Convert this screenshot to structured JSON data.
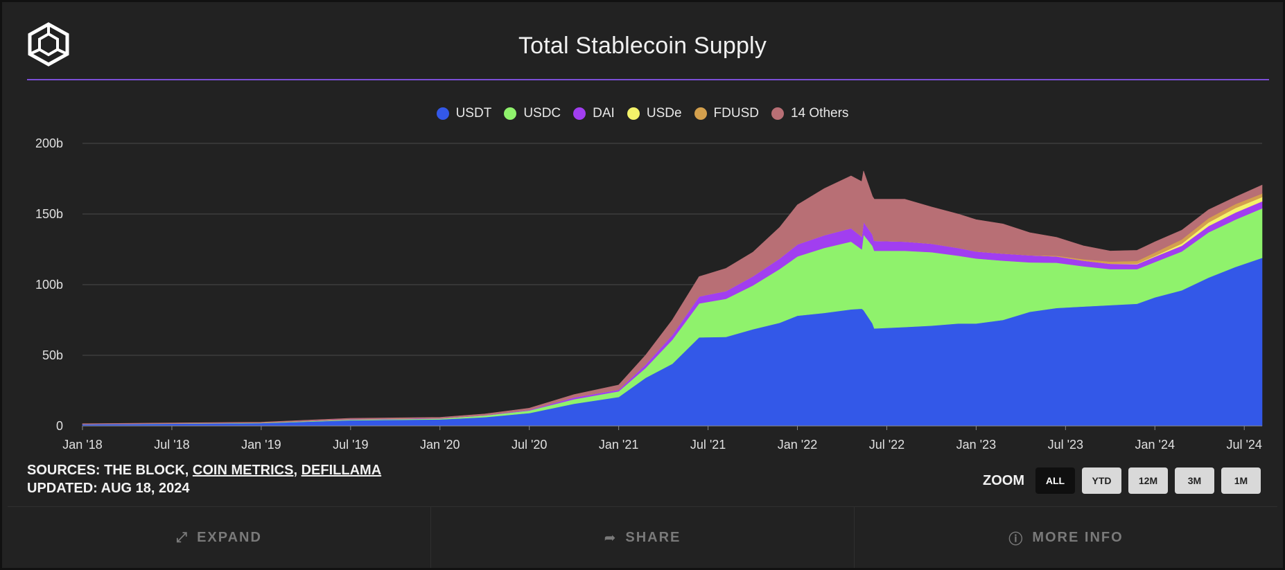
{
  "header": {
    "title": "Total Stablecoin Supply",
    "logo_icon": "cube-logo-icon"
  },
  "legend": [
    {
      "label": "USDT",
      "color": "#3358e8"
    },
    {
      "label": "USDC",
      "color": "#8ff26c"
    },
    {
      "label": "DAI",
      "color": "#a13ef0"
    },
    {
      "label": "USDe",
      "color": "#f4f36a"
    },
    {
      "label": "FDUSD",
      "color": "#d4a04d"
    },
    {
      "label": "14 Others",
      "color": "#b86f75"
    }
  ],
  "chart_data": {
    "type": "area",
    "stacked": true,
    "title": "Total Stablecoin Supply",
    "xlabel": "",
    "ylabel": "",
    "ylim": [
      0,
      200
    ],
    "y_unit": "b",
    "y_ticks": [
      "0",
      "50b",
      "100b",
      "150b",
      "200b"
    ],
    "x_ticks": [
      "Jan '18",
      "Jul '18",
      "Jan '19",
      "Jul '19",
      "Jan '20",
      "Jul '20",
      "Jan '21",
      "Jul '21",
      "Jan '22",
      "Jul '22",
      "Jan '23",
      "Jul '23",
      "Jan '24",
      "Jul '24"
    ],
    "grid": true,
    "legend_position": "top-center",
    "x": [
      2018.0,
      2019.0,
      2019.5,
      2020.0,
      2020.25,
      2020.5,
      2020.75,
      2021.0,
      2021.15,
      2021.3,
      2021.45,
      2021.6,
      2021.75,
      2021.9,
      2022.0,
      2022.15,
      2022.3,
      2022.36,
      2022.37,
      2022.42,
      2022.43,
      2022.6,
      2022.75,
      2022.9,
      2023.0,
      2023.15,
      2023.3,
      2023.45,
      2023.6,
      2023.75,
      2023.9,
      2024.0,
      2024.15,
      2024.3,
      2024.45,
      2024.6
    ],
    "series": [
      {
        "name": "USDT",
        "values": [
          1.2,
          2.0,
          4.0,
          4.6,
          6.2,
          9.1,
          15.7,
          20.5,
          34.0,
          44.0,
          62.7,
          63.0,
          68.4,
          73.0,
          78.0,
          80.0,
          82.5,
          83.0,
          82.0,
          72.5,
          69.0,
          70.0,
          71.0,
          72.5,
          72.5,
          75.0,
          80.8,
          83.5,
          84.5,
          85.5,
          86.5,
          91.0,
          96.0,
          105.0,
          112.5,
          119.0
        ]
      },
      {
        "name": "USDC",
        "values": [
          0,
          0.2,
          0.5,
          0.6,
          1.2,
          1.8,
          3.2,
          4.0,
          7.0,
          17.0,
          24.0,
          27.0,
          31.0,
          38.0,
          42.0,
          46.0,
          48.0,
          42.0,
          53.5,
          55.0,
          55.0,
          54.0,
          52.0,
          48.0,
          46.0,
          42.0,
          35.0,
          32.0,
          28.5,
          25.5,
          24.5,
          25.0,
          27.5,
          32.0,
          33.5,
          35.0
        ]
      },
      {
        "name": "DAI",
        "values": [
          0.1,
          0.1,
          0.3,
          0.3,
          0.2,
          0.5,
          1.3,
          1.2,
          2.5,
          3.5,
          5.0,
          5.5,
          6.5,
          7.5,
          8.5,
          9.0,
          9.5,
          9.0,
          9.0,
          8.0,
          7.0,
          6.5,
          6.0,
          5.5,
          5.0,
          5.0,
          5.0,
          4.5,
          4.0,
          3.8,
          3.5,
          3.8,
          4.0,
          4.5,
          5.0,
          5.0
        ]
      },
      {
        "name": "USDe",
        "values": [
          0,
          0,
          0,
          0,
          0,
          0,
          0,
          0,
          0,
          0,
          0,
          0,
          0,
          0,
          0,
          0,
          0,
          0,
          0,
          0,
          0,
          0,
          0,
          0,
          0,
          0,
          0,
          0,
          0,
          0,
          0.3,
          0.5,
          1.5,
          2.5,
          3.2,
          3.0
        ]
      },
      {
        "name": "FDUSD",
        "values": [
          0,
          0,
          0,
          0,
          0,
          0,
          0,
          0,
          0,
          0,
          0,
          0,
          0,
          0,
          0,
          0,
          0,
          0,
          0,
          0,
          0,
          0,
          0,
          0,
          0,
          0,
          0,
          0.5,
          1.0,
          1.5,
          2.0,
          2.5,
          3.0,
          3.0,
          2.8,
          2.5
        ]
      },
      {
        "name": "14 Others",
        "values": [
          0.3,
          0.4,
          0.6,
          0.6,
          0.9,
          1.2,
          2.0,
          3.3,
          6.5,
          10.5,
          14.0,
          16.0,
          17.0,
          22.0,
          28.0,
          33.0,
          37.0,
          39.0,
          36.0,
          27.0,
          29.5,
          30.0,
          26.0,
          24.0,
          22.5,
          21.0,
          16.0,
          13.0,
          9.5,
          7.5,
          7.5,
          7.5,
          6.5,
          6.0,
          5.0,
          6.0
        ]
      }
    ]
  },
  "sources": {
    "prefix": "SOURCES: THE BLOCK, ",
    "link1": "COIN METRICS",
    "sep": ", ",
    "link2": "DEFILLAMA",
    "updated": "UPDATED: AUG 18, 2024"
  },
  "zoom": {
    "label": "ZOOM",
    "buttons": [
      "ALL",
      "YTD",
      "12M",
      "3M",
      "1M"
    ],
    "active": "ALL"
  },
  "footer": {
    "expand": "EXPAND",
    "share": "SHARE",
    "more_info": "MORE INFO"
  }
}
